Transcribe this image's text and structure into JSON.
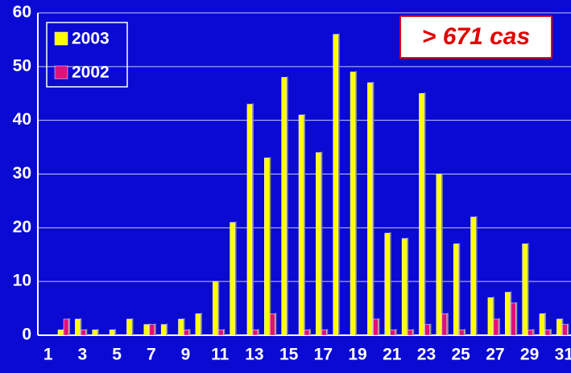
{
  "chart_data": {
    "type": "bar",
    "annotation": "> 671 cas",
    "categories": [
      1,
      null,
      3,
      null,
      5,
      null,
      7,
      null,
      9,
      null,
      11,
      null,
      13,
      null,
      15,
      null,
      17,
      null,
      19,
      null,
      21,
      null,
      23,
      null,
      25,
      null,
      27,
      null,
      29,
      null,
      31
    ],
    "series": [
      {
        "name": "2003",
        "color": "#ffff00",
        "values": [
          0,
          1,
          3,
          1,
          1,
          3,
          2,
          2,
          3,
          4,
          10,
          21,
          43,
          33,
          48,
          41,
          34,
          56,
          49,
          47,
          19,
          18,
          45,
          30,
          17,
          22,
          7,
          8,
          17,
          4,
          3
        ]
      },
      {
        "name": "2002",
        "color": "#e0107a",
        "values": [
          0,
          3,
          1,
          0,
          0,
          0,
          2,
          0,
          1,
          0,
          1,
          0,
          1,
          4,
          0,
          1,
          1,
          0,
          0,
          3,
          1,
          1,
          2,
          4,
          1,
          0,
          3,
          6,
          1,
          1,
          2
        ]
      }
    ],
    "ylim": [
      0,
      60
    ],
    "yticks": [
      0,
      10,
      20,
      30,
      40,
      50,
      60
    ],
    "grid": true,
    "legend": "top-left"
  }
}
